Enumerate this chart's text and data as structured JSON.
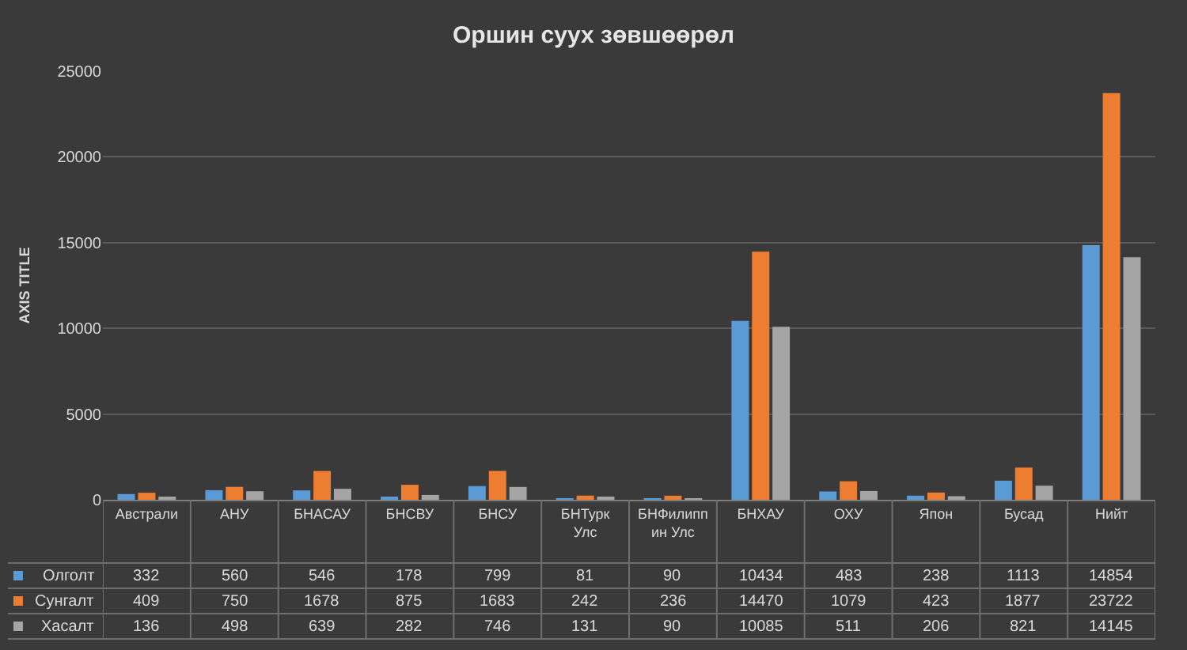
{
  "chart_data": {
    "type": "bar",
    "title": "Оршин суух зөвшөөрөл",
    "ylabel": "AXIS TITLE",
    "categories": [
      "Австрали",
      "АНУ",
      "БНАСАУ",
      "БНСВУ",
      "БНСУ",
      "БНТурк Улс",
      "БНФилипп ин Улс",
      "БНХАУ",
      "ОХУ",
      "Япон",
      "Бусад",
      "Нийт"
    ],
    "series": [
      {
        "name": "Олголт",
        "color": "#5b9bd5",
        "values": [
          332,
          560,
          546,
          178,
          799,
          81,
          90,
          10434,
          483,
          238,
          1113,
          14854
        ]
      },
      {
        "name": "Сунгалт",
        "color": "#ed7d31",
        "values": [
          409,
          750,
          1678,
          875,
          1683,
          242,
          236,
          14470,
          1079,
          423,
          1877,
          23722
        ]
      },
      {
        "name": "Хасалт",
        "color": "#a5a5a5",
        "values": [
          136,
          498,
          639,
          282,
          746,
          131,
          90,
          10085,
          511,
          206,
          821,
          14145
        ]
      }
    ],
    "ylim": [
      0,
      25000
    ],
    "yticks": [
      0,
      5000,
      10000,
      15000,
      20000,
      25000
    ],
    "grid": "y",
    "legend": "bottom",
    "data_labels": true
  }
}
